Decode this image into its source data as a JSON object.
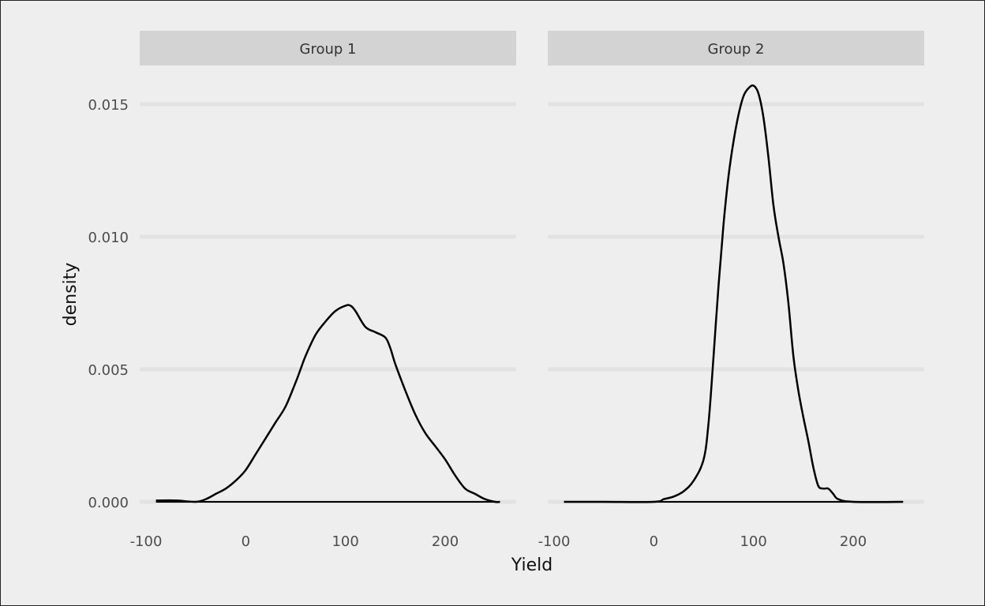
{
  "chart_data": {
    "type": "line",
    "chart_kind": "density",
    "xlabel": "Yield",
    "ylabel": "density",
    "xlim": [
      -100,
      260
    ],
    "ylim": [
      0,
      0.0165
    ],
    "x_ticks": [
      -100,
      0,
      100,
      200
    ],
    "x_tick_labels": [
      "-100",
      "0",
      "100",
      "200"
    ],
    "y_ticks": [
      0,
      0.005,
      0.01,
      0.015
    ],
    "y_tick_labels": [
      "0.000",
      "0.005",
      "0.010",
      "0.015"
    ],
    "grid": "horizontal-major",
    "line_color": "#000000",
    "strip_color": "#d3d3d3",
    "background_color": "#eeeeee",
    "gridline_color": "#e2e2e2",
    "panels": [
      {
        "title": "Group 1",
        "x": [
          -90,
          -70,
          -50,
          -40,
          -30,
          -20,
          -10,
          0,
          10,
          20,
          30,
          40,
          50,
          55,
          60,
          70,
          80,
          90,
          100,
          105,
          110,
          120,
          130,
          140,
          145,
          150,
          160,
          170,
          180,
          190,
          200,
          210,
          220,
          230,
          240,
          250,
          255
        ],
        "y": [
          5e-05,
          5e-05,
          0.0,
          0.0001,
          0.0003,
          0.0005,
          0.0008,
          0.0012,
          0.0018,
          0.0024,
          0.003,
          0.0036,
          0.0045,
          0.005,
          0.0055,
          0.0063,
          0.0068,
          0.0072,
          0.0074,
          0.0074,
          0.0072,
          0.0066,
          0.0064,
          0.0062,
          0.0058,
          0.0052,
          0.0042,
          0.0033,
          0.0026,
          0.0021,
          0.0016,
          0.001,
          0.0005,
          0.0003,
          0.0001,
          0.0,
          0.0
        ]
      },
      {
        "title": "Group 2",
        "x": [
          -90,
          -50,
          0,
          10,
          20,
          30,
          40,
          50,
          55,
          60,
          65,
          70,
          75,
          80,
          85,
          90,
          95,
          100,
          105,
          110,
          115,
          120,
          125,
          130,
          135,
          140,
          145,
          150,
          155,
          160,
          165,
          170,
          175,
          180,
          185,
          200,
          250
        ],
        "y": [
          0.0,
          0.0,
          0.0,
          0.0001,
          0.0002,
          0.0004,
          0.0008,
          0.0016,
          0.003,
          0.0055,
          0.0082,
          0.0105,
          0.0123,
          0.0136,
          0.0146,
          0.0153,
          0.0156,
          0.0157,
          0.0154,
          0.0145,
          0.013,
          0.0112,
          0.01,
          0.009,
          0.0075,
          0.0055,
          0.0042,
          0.0032,
          0.0023,
          0.0013,
          0.0006,
          0.0005,
          0.0005,
          0.0003,
          0.0001,
          0.0,
          0.0
        ]
      }
    ]
  }
}
